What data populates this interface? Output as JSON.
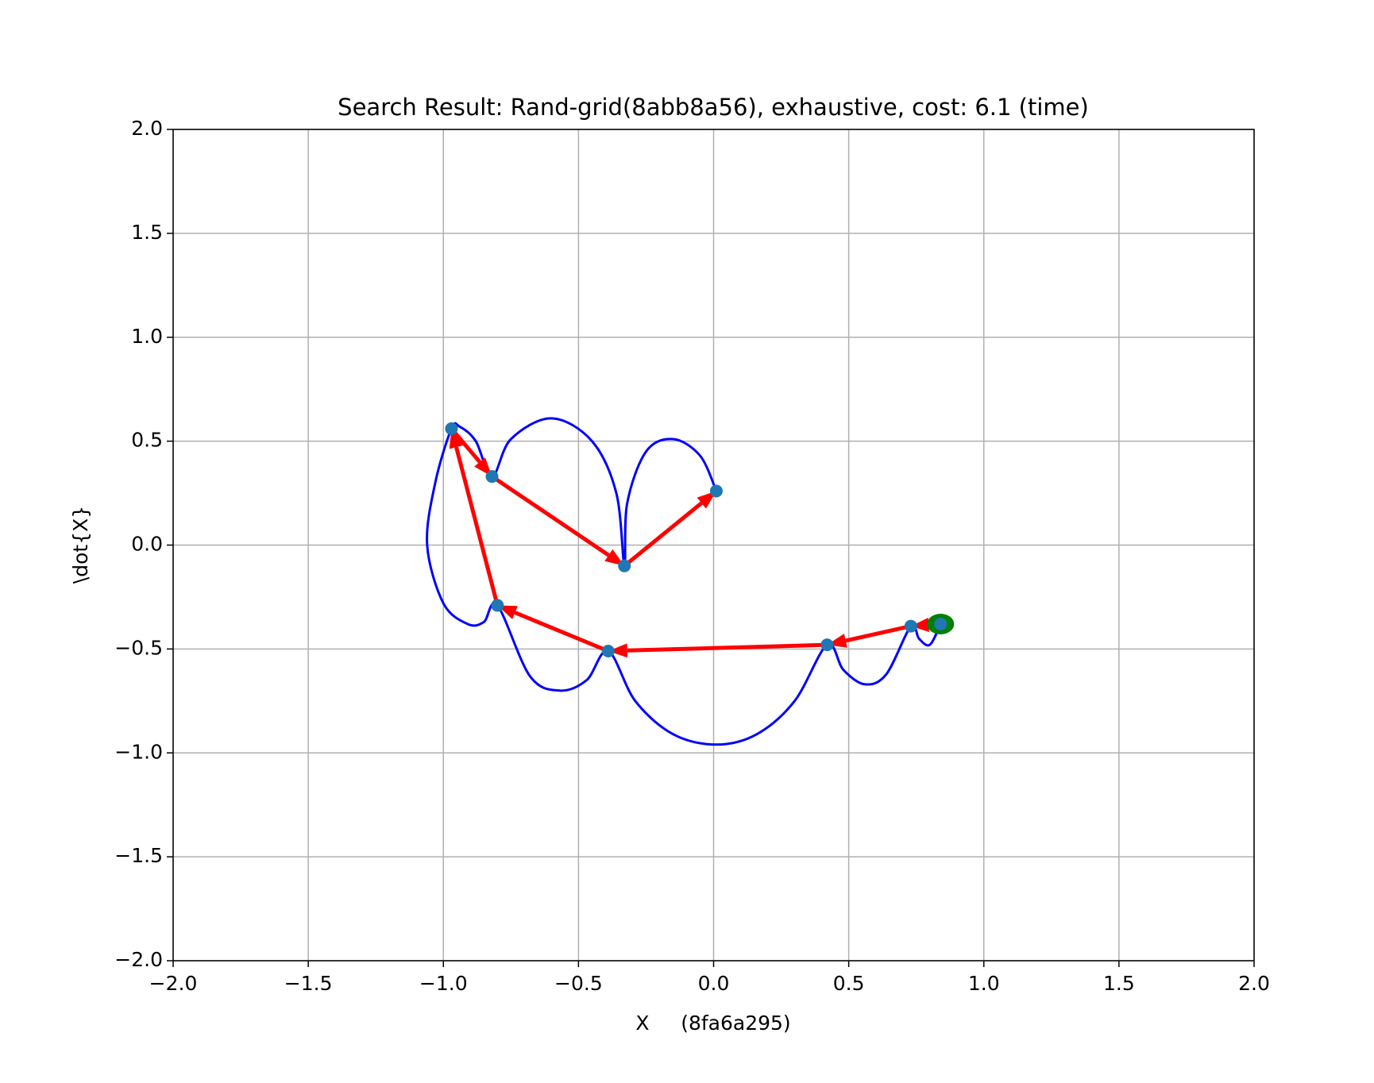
{
  "chart_data": {
    "type": "trajectory",
    "title": "Search Result: Rand-grid(8abb8a56), exhaustive, cost: 6.1 (time)",
    "x_label": "X     (8fa6a295)",
    "y_label": "\\dot{X}",
    "xlim": [
      -2,
      2
    ],
    "ylim": [
      -2,
      2
    ],
    "xticks": [
      {
        "value": -2,
        "label": "−2.0"
      },
      {
        "value": -1.5,
        "label": "−1.5"
      },
      {
        "value": -1,
        "label": "−1.0"
      },
      {
        "value": -0.5,
        "label": "−0.5"
      },
      {
        "value": 0,
        "label": "0.0"
      },
      0.5,
      {
        "value": 1,
        "label": "1.0"
      },
      1.5,
      {
        "value": 2,
        "label": "2.0"
      }
    ],
    "yticks": [
      {
        "value": -2,
        "label": "−2.0"
      },
      {
        "value": -1.5,
        "label": "−1.5"
      },
      {
        "value": -1,
        "label": "−1.0"
      },
      {
        "value": -0.5,
        "label": "−0.5"
      },
      {
        "value": 0,
        "label": "0.0"
      },
      0.5,
      {
        "value": 1,
        "label": "1.0"
      },
      1.5,
      {
        "value": 2,
        "label": "2.0"
      }
    ],
    "grid": true,
    "nodes": {
      "color": "#1f77b4",
      "x": [
        0.84,
        0.73,
        0.42,
        -0.39,
        -0.8,
        -0.97,
        -0.82,
        -0.33,
        0.01
      ],
      "y": [
        -0.38,
        -0.39,
        -0.48,
        -0.51,
        -0.29,
        0.56,
        0.33,
        -0.1,
        0.26
      ]
    },
    "arrow_color": "#ff0000",
    "start_color": "#008000",
    "trajectory": {
      "color": "#0000ff",
      "x": [
        0.84,
        0.8,
        0.76,
        0.73,
        0.64,
        0.56,
        0.48,
        0.42,
        0.3,
        0.16,
        0.01,
        -0.15,
        -0.29,
        -0.39,
        -0.47,
        -0.57,
        -0.68,
        -0.8,
        -0.85,
        -0.91,
        -1.0,
        -1.06,
        -1.03,
        -0.97,
        -0.94,
        -0.88,
        -0.82,
        -0.75,
        -0.6,
        -0.45,
        -0.36,
        -0.33,
        -0.32,
        -0.25,
        -0.15,
        -0.05,
        0.01
      ],
      "y": [
        -0.38,
        -0.48,
        -0.45,
        -0.39,
        -0.62,
        -0.67,
        -0.6,
        -0.48,
        -0.75,
        -0.91,
        -0.96,
        -0.91,
        -0.75,
        -0.51,
        -0.65,
        -0.7,
        -0.63,
        -0.29,
        -0.37,
        -0.38,
        -0.28,
        0.0,
        0.3,
        0.56,
        0.57,
        0.5,
        0.33,
        0.51,
        0.61,
        0.5,
        0.25,
        -0.1,
        0.2,
        0.45,
        0.51,
        0.43,
        0.26
      ]
    }
  }
}
